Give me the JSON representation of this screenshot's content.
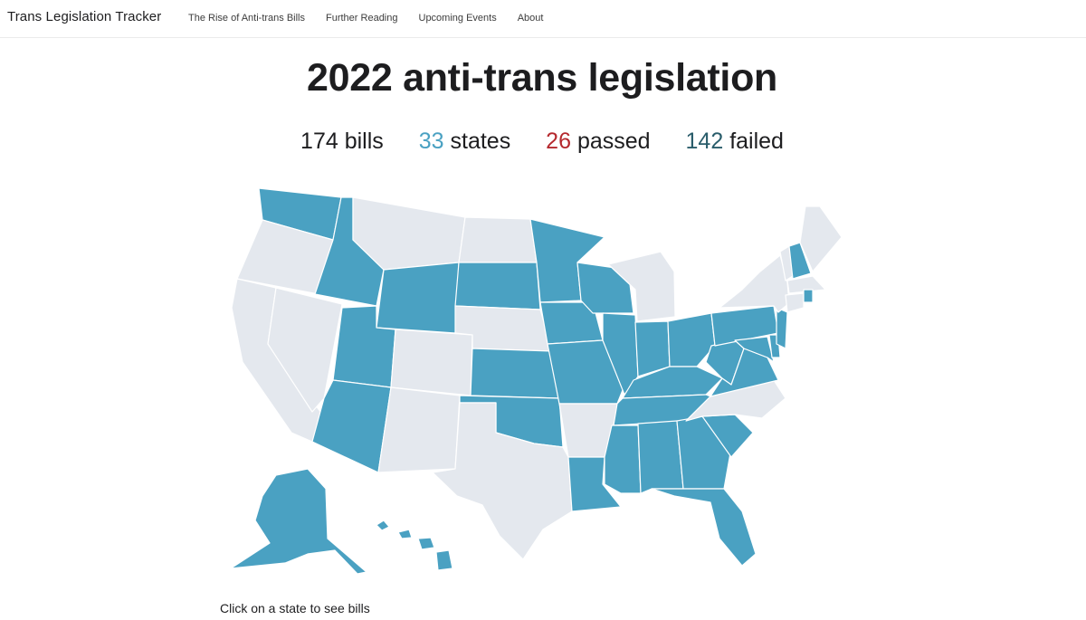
{
  "navbar": {
    "brand": "Trans Legislation Tracker",
    "links": [
      "The Rise of Anti-trans Bills",
      "Further Reading",
      "Upcoming Events",
      "About"
    ]
  },
  "main": {
    "title": "2022 anti-trans legislation",
    "stats": {
      "bills": {
        "value": "174",
        "label": "bills"
      },
      "states": {
        "value": "33",
        "label": "states"
      },
      "passed": {
        "value": "26",
        "label": "passed"
      },
      "failed": {
        "value": "142",
        "label": "failed"
      }
    },
    "hint": "Click on a state to see bills"
  },
  "map": {
    "colors": {
      "with_bills": "#4aa1c2",
      "no_bills": "#e4e8ee",
      "passed": "#b5292e",
      "failed": "#2a5d6b"
    },
    "states_with_bills": [
      "WA",
      "ID",
      "WY",
      "UT",
      "AZ",
      "SD",
      "KS",
      "OK",
      "MN",
      "IA",
      "MO",
      "WI",
      "IL",
      "IN",
      "OH",
      "KY",
      "TN",
      "MS",
      "AL",
      "LA",
      "GA",
      "SC",
      "FL",
      "PA",
      "WV",
      "VA",
      "MD",
      "DE",
      "NJ",
      "NH",
      "RI",
      "AK",
      "HI"
    ]
  }
}
